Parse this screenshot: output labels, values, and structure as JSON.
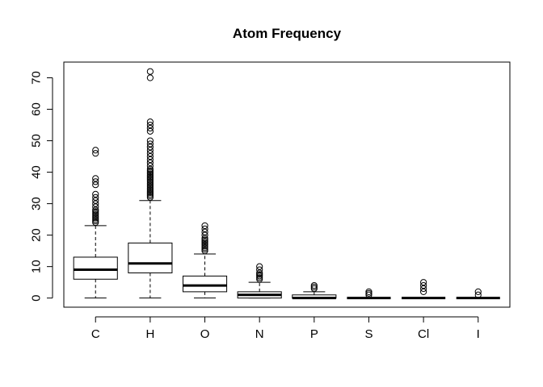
{
  "chart_data": {
    "type": "boxplot",
    "title": "Atom Frequency",
    "xlabel": "",
    "ylabel": "",
    "categories": [
      "C",
      "H",
      "O",
      "N",
      "P",
      "S",
      "Cl",
      "I"
    ],
    "yticks": [
      0,
      10,
      20,
      30,
      40,
      50,
      60,
      70
    ],
    "ylim": [
      -2.9,
      75
    ],
    "grid": false,
    "boxes": [
      {
        "name": "C",
        "min": 0,
        "q1": 6,
        "median": 9,
        "q3": 13,
        "max": 23,
        "outliers": [
          24,
          24.5,
          25,
          25.5,
          26,
          26.5,
          27,
          27.5,
          28,
          29,
          30,
          31,
          32,
          33,
          36,
          37,
          38,
          46,
          47
        ]
      },
      {
        "name": "H",
        "min": 0,
        "q1": 8,
        "median": 11,
        "q3": 17.5,
        "max": 31,
        "outliers": [
          32,
          32.5,
          33,
          33.5,
          34,
          34.5,
          35,
          35.5,
          36,
          36.5,
          37,
          37.5,
          38,
          38.5,
          39,
          39.5,
          40,
          40.5,
          41,
          42,
          43,
          44,
          45,
          46,
          47,
          48,
          49,
          50,
          53,
          54,
          55,
          56,
          70,
          72
        ]
      },
      {
        "name": "O",
        "min": 0,
        "q1": 2,
        "median": 4,
        "q3": 7,
        "max": 14,
        "outliers": [
          15,
          15.5,
          16,
          16.5,
          17,
          17.5,
          18,
          18.5,
          19,
          20,
          21,
          22,
          23
        ]
      },
      {
        "name": "N",
        "min": 0,
        "q1": 0,
        "median": 1,
        "q3": 2,
        "max": 5,
        "outliers": [
          6,
          6.5,
          7,
          7.5,
          8,
          9,
          10
        ]
      },
      {
        "name": "P",
        "min": 0,
        "q1": 0,
        "median": 0,
        "q3": 1,
        "max": 2,
        "outliers": [
          3,
          3.5,
          4
        ]
      },
      {
        "name": "S",
        "min": 0,
        "q1": 0,
        "median": 0,
        "q3": 0,
        "max": 0,
        "outliers": [
          1,
          1.5,
          2
        ]
      },
      {
        "name": "Cl",
        "min": 0,
        "q1": 0,
        "median": 0,
        "q3": 0,
        "max": 0,
        "outliers": [
          2,
          3,
          4,
          5
        ]
      },
      {
        "name": "I",
        "min": 0,
        "q1": 0,
        "median": 0,
        "q3": 0,
        "max": 0,
        "outliers": [
          1,
          2
        ]
      }
    ]
  }
}
